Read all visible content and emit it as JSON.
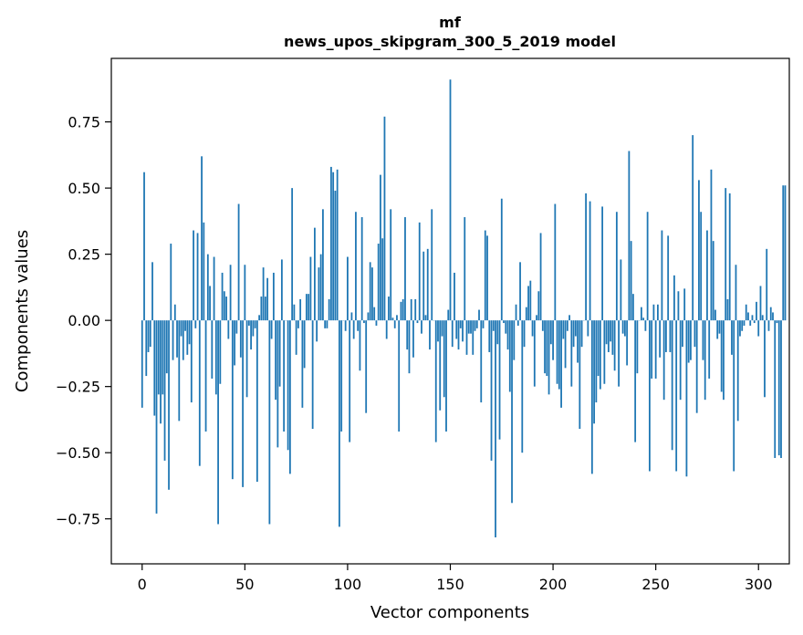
{
  "chart_data": {
    "type": "bar",
    "title": "mf",
    "subtitle": "news_upos_skipgram_300_5_2019 model",
    "xlabel": "Vector components",
    "ylabel": "Components values",
    "xlim": [
      -15,
      315
    ],
    "ylim": [
      -0.92,
      0.99
    ],
    "xticks": [
      0,
      50,
      100,
      150,
      200,
      250,
      300
    ],
    "yticks": [
      -0.75,
      -0.5,
      -0.25,
      0.0,
      0.25,
      0.5,
      0.75
    ],
    "ytick_labels": [
      "−0.75",
      "−0.50",
      "−0.25",
      "0.00",
      "0.25",
      "0.50",
      "0.75"
    ],
    "xtick_labels": [
      "0",
      "50",
      "100",
      "150",
      "200",
      "250",
      "300"
    ],
    "bar_color": "#1f77b4",
    "values": [
      -0.33,
      0.56,
      -0.21,
      -0.12,
      -0.1,
      0.22,
      -0.36,
      -0.73,
      -0.28,
      -0.39,
      -0.28,
      -0.53,
      -0.2,
      -0.64,
      0.29,
      -0.15,
      0.06,
      -0.14,
      -0.38,
      -0.06,
      -0.15,
      -0.04,
      -0.13,
      -0.09,
      -0.31,
      0.34,
      -0.03,
      0.33,
      -0.55,
      0.62,
      0.37,
      -0.42,
      0.25,
      0.13,
      -0.22,
      0.24,
      -0.28,
      -0.77,
      -0.24,
      0.18,
      0.11,
      0.09,
      -0.07,
      0.21,
      -0.6,
      -0.17,
      -0.05,
      0.44,
      -0.14,
      -0.63,
      0.21,
      -0.29,
      -0.02,
      -0.11,
      -0.06,
      -0.03,
      -0.61,
      0.02,
      0.09,
      0.2,
      0.09,
      0.16,
      -0.77,
      -0.07,
      0.18,
      -0.3,
      -0.48,
      -0.25,
      0.23,
      -0.42,
      0.0,
      -0.49,
      -0.58,
      0.5,
      0.06,
      -0.13,
      -0.03,
      0.08,
      -0.33,
      -0.18,
      0.1,
      0.1,
      0.24,
      -0.41,
      0.35,
      -0.08,
      0.2,
      0.25,
      0.42,
      -0.03,
      -0.03,
      0.08,
      0.58,
      0.56,
      0.49,
      0.57,
      -0.78,
      -0.42,
      0.0,
      -0.04,
      0.24,
      -0.46,
      0.03,
      -0.07,
      0.41,
      -0.04,
      -0.19,
      0.39,
      -0.01,
      -0.35,
      0.03,
      0.22,
      0.2,
      0.05,
      -0.02,
      0.29,
      0.55,
      0.31,
      0.77,
      -0.07,
      0.09,
      0.42,
      0.01,
      -0.03,
      0.02,
      -0.42,
      0.07,
      0.08,
      0.39,
      -0.11,
      -0.2,
      0.08,
      -0.14,
      0.08,
      -0.01,
      0.37,
      -0.05,
      0.26,
      0.02,
      0.27,
      -0.11,
      0.42,
      0.0,
      -0.46,
      -0.08,
      -0.34,
      -0.06,
      -0.29,
      -0.42,
      0.04,
      0.91,
      -0.1,
      0.18,
      -0.07,
      -0.11,
      -0.03,
      -0.08,
      0.39,
      -0.13,
      -0.05,
      -0.05,
      -0.13,
      -0.04,
      -0.03,
      0.04,
      -0.31,
      -0.03,
      0.34,
      0.32,
      -0.12,
      -0.53,
      -0.04,
      -0.82,
      -0.09,
      -0.45,
      0.46,
      -0.01,
      -0.05,
      -0.11,
      -0.27,
      -0.69,
      -0.15,
      0.06,
      -0.02,
      0.22,
      -0.5,
      -0.1,
      0.05,
      0.13,
      0.15,
      -0.06,
      -0.25,
      0.02,
      0.11,
      0.33,
      -0.04,
      -0.2,
      -0.21,
      -0.28,
      -0.09,
      -0.15,
      0.44,
      -0.24,
      -0.26,
      -0.33,
      -0.07,
      -0.18,
      -0.04,
      0.02,
      -0.25,
      -0.1,
      -0.06,
      -0.16,
      -0.41,
      -0.1,
      0.0,
      0.48,
      -0.06,
      0.45,
      -0.58,
      -0.39,
      -0.31,
      -0.21,
      -0.26,
      0.43,
      -0.24,
      -0.09,
      -0.12,
      -0.08,
      -0.13,
      -0.19,
      0.41,
      -0.25,
      0.23,
      -0.05,
      -0.06,
      -0.17,
      0.64,
      0.3,
      0.1,
      -0.46,
      -0.2,
      0.0,
      0.05,
      0.01,
      -0.04,
      0.41,
      -0.57,
      -0.22,
      0.06,
      -0.22,
      0.06,
      -0.14,
      0.34,
      -0.3,
      -0.12,
      0.32,
      -0.12,
      -0.49,
      0.17,
      -0.57,
      0.11,
      -0.3,
      -0.1,
      0.12,
      -0.59,
      -0.16,
      -0.15,
      0.7,
      -0.1,
      -0.35,
      0.53,
      0.41,
      -0.15,
      -0.3,
      0.34,
      -0.22,
      0.57,
      0.3,
      0.04,
      -0.07,
      -0.05,
      -0.27,
      -0.3,
      0.5,
      0.08,
      0.48,
      -0.13,
      -0.57,
      0.21,
      -0.38,
      -0.06,
      -0.04,
      -0.02,
      0.06,
      0.03,
      -0.02,
      0.02,
      -0.01,
      0.07,
      -0.06,
      0.13,
      0.02,
      -0.29,
      0.27,
      -0.04,
      0.05,
      0.03,
      -0.52,
      -0.01,
      -0.51,
      -0.52,
      0.51,
      0.51
    ]
  }
}
